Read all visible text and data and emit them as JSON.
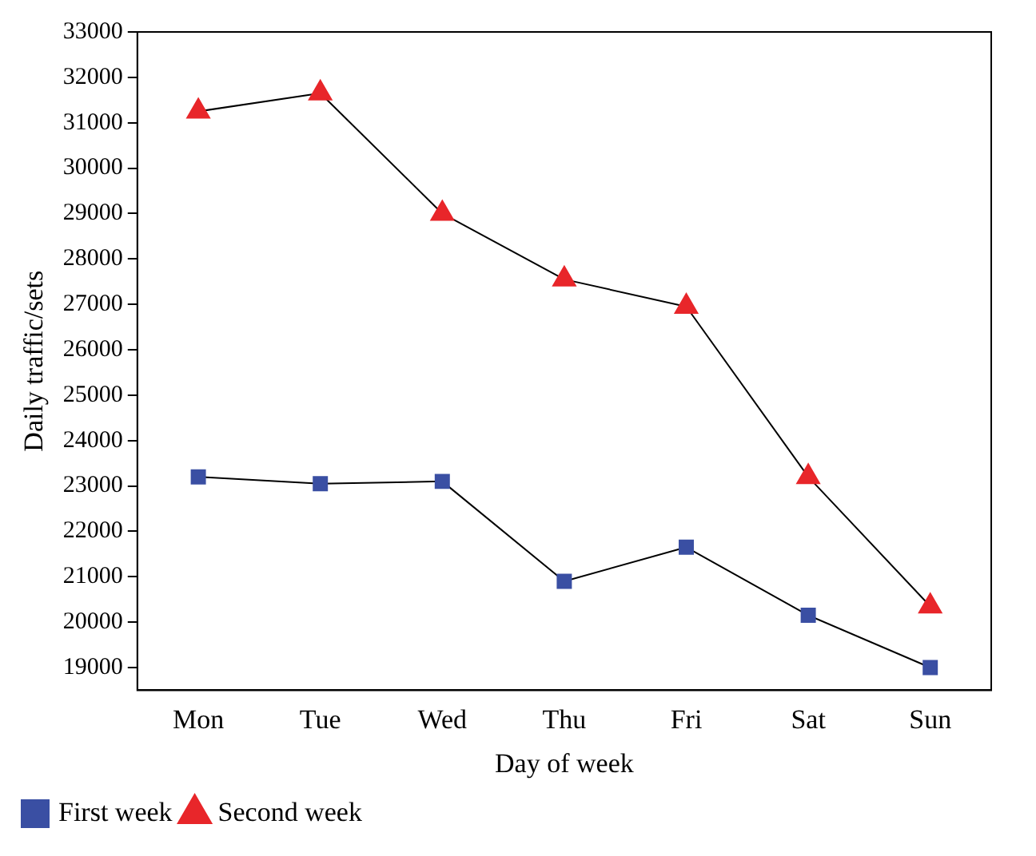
{
  "chart_data": {
    "type": "line",
    "xlabel": "Day of week",
    "ylabel": "Daily traffic/sets",
    "categories": [
      "Mon",
      "Tue",
      "Wed",
      "Thu",
      "Fri",
      "Sat",
      "Sun"
    ],
    "series": [
      {
        "name": "First week",
        "color": "#3a4fa3",
        "marker": "square",
        "values": [
          23200,
          23050,
          23100,
          20900,
          21650,
          20150,
          19000
        ]
      },
      {
        "name": "Second week",
        "color": "#e8262a",
        "marker": "triangle",
        "values": [
          31250,
          31650,
          29000,
          27550,
          26950,
          23200,
          20350
        ]
      }
    ],
    "ylim": [
      18500,
      33000
    ],
    "yticks": [
      19000,
      20000,
      21000,
      22000,
      23000,
      24000,
      25000,
      26000,
      27000,
      28000,
      29000,
      30000,
      31000,
      32000,
      33000
    ],
    "grid": false,
    "legend": "bottom left",
    "line_style": "solid"
  }
}
